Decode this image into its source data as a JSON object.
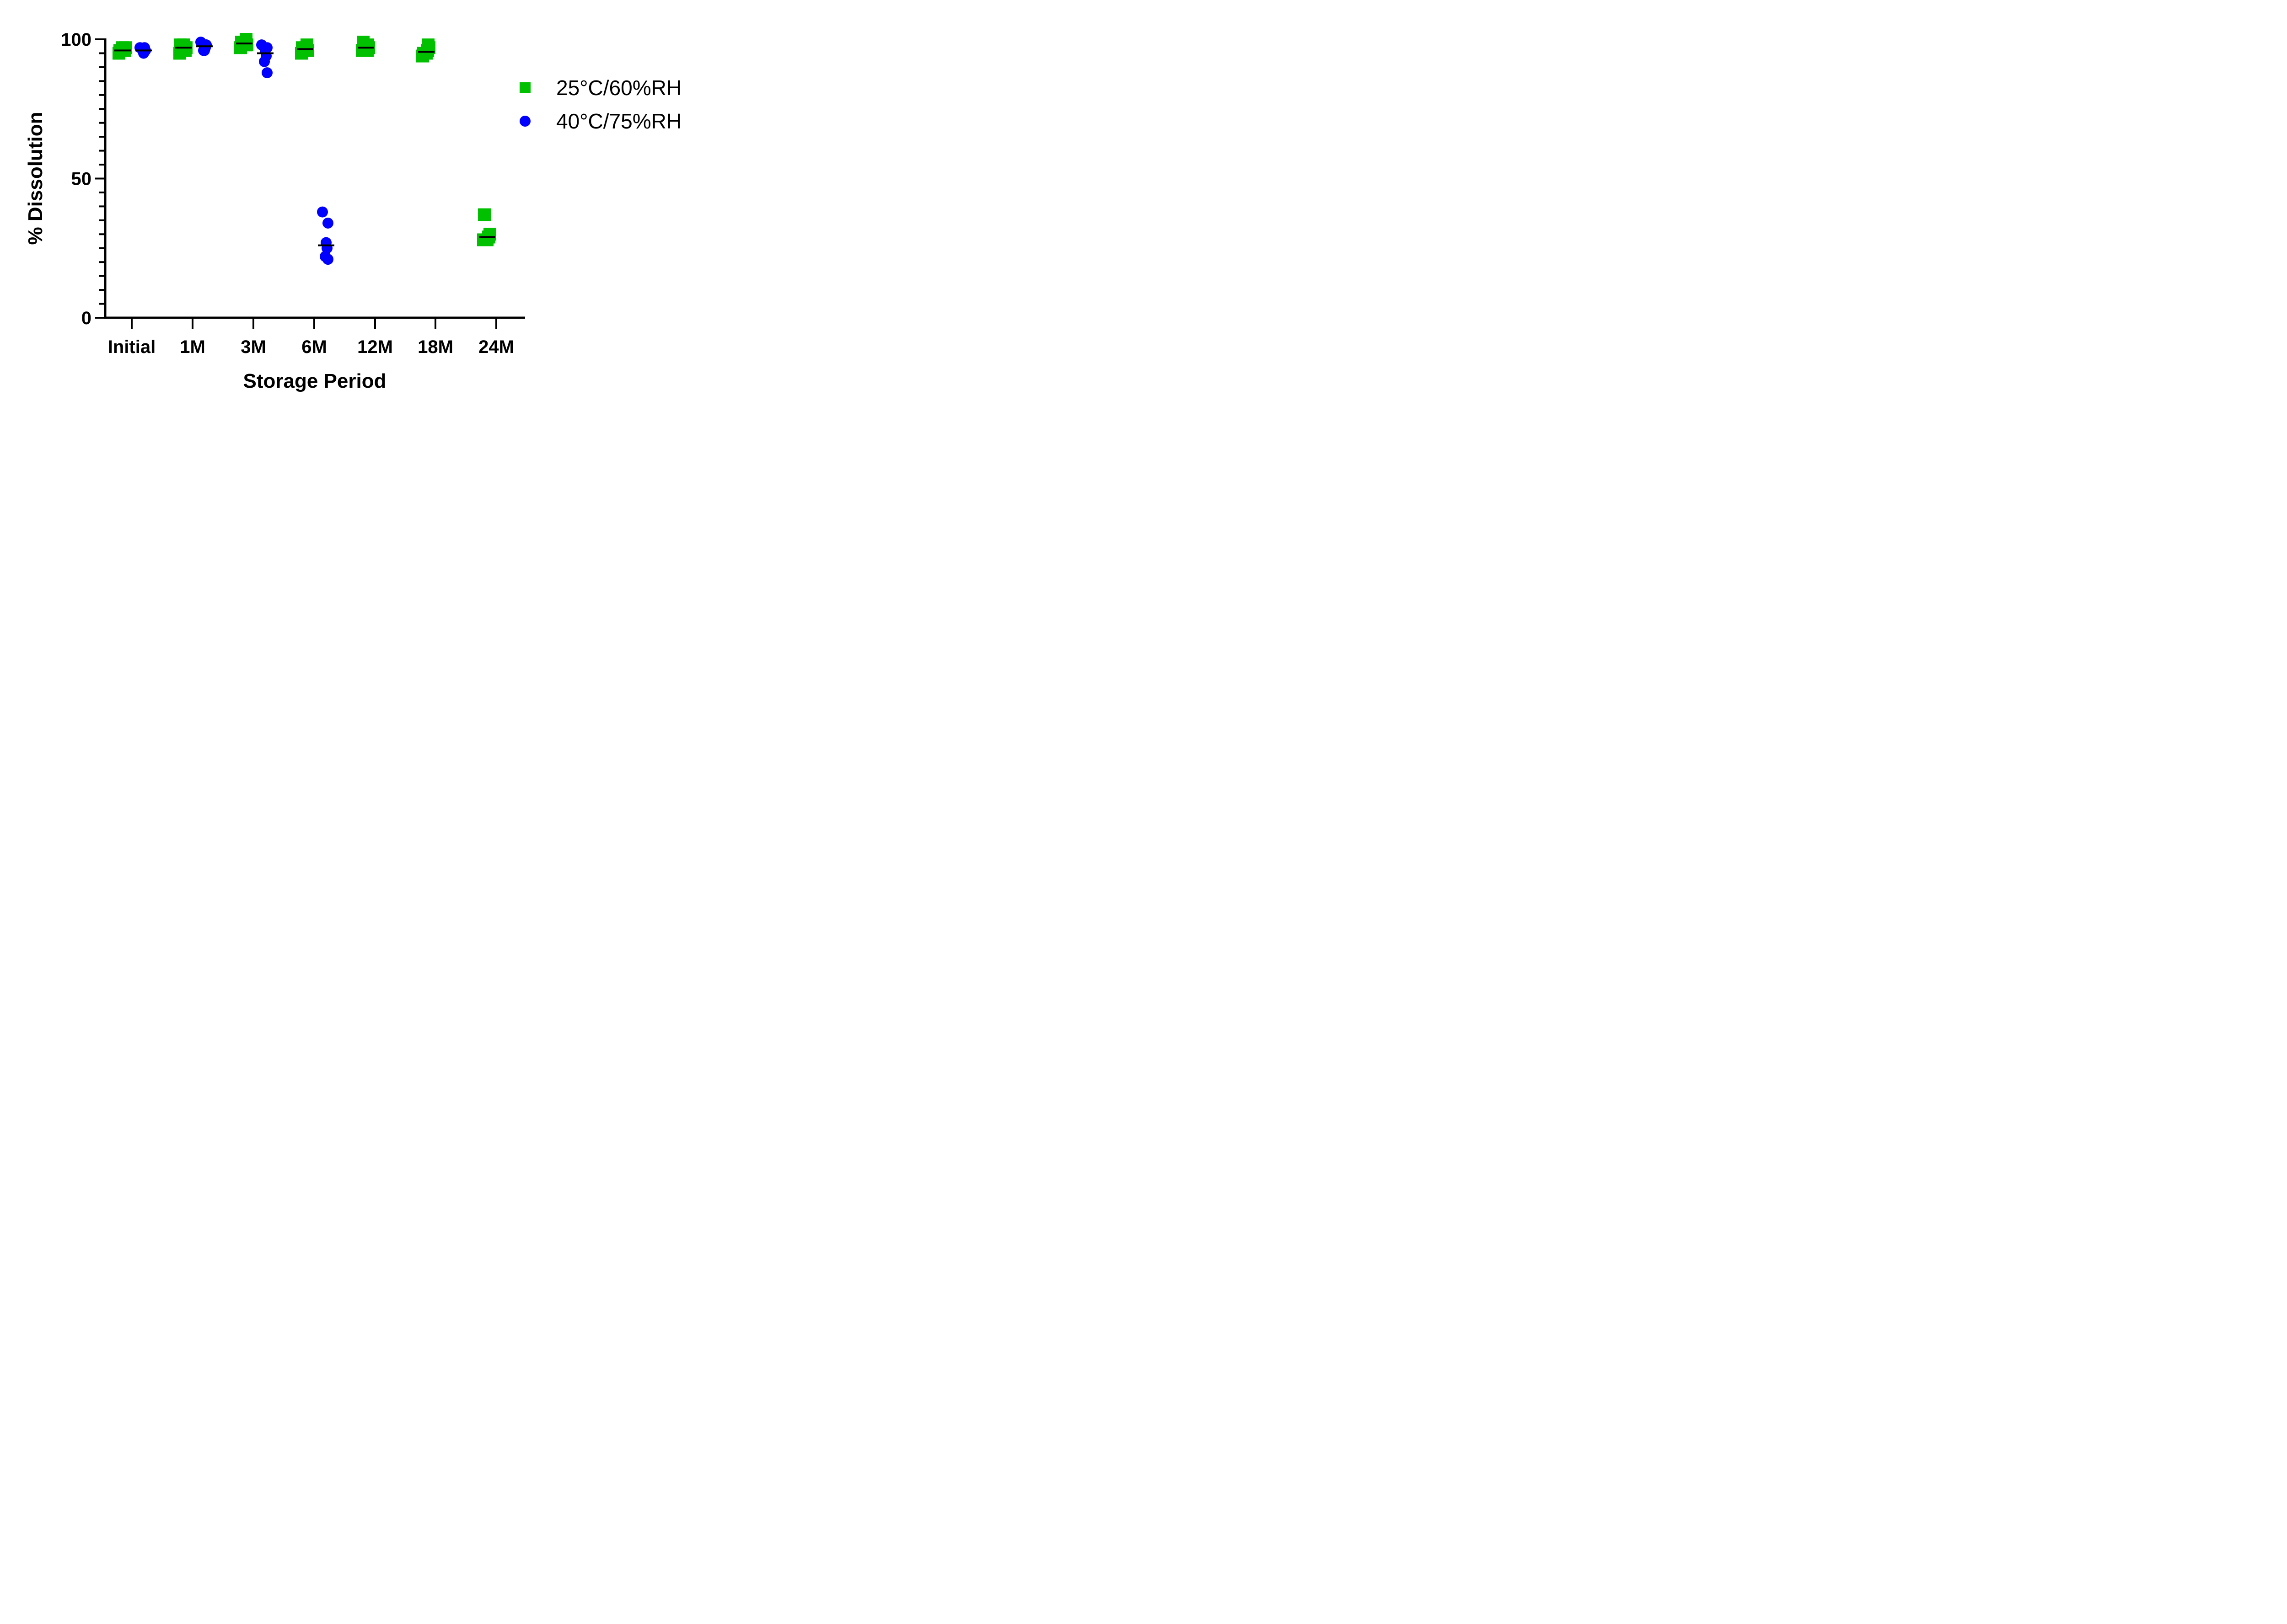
{
  "chart_data": {
    "type": "scatter",
    "xlabel": "Storage Period",
    "ylabel": "% Dissolution",
    "categories": [
      "Initial",
      "1M",
      "3M",
      "6M",
      "12M",
      "18M",
      "24M"
    ],
    "ylim": [
      0,
      100
    ],
    "yticks": [
      "0",
      "50",
      "100"
    ],
    "legend_position": "right",
    "grid": false,
    "series": [
      {
        "name": "25°C/60%RH",
        "marker": "square",
        "color": "#00c000",
        "points": [
          {
            "x": "Initial",
            "values": [
              96,
              97,
              95,
              96,
              97,
              96
            ]
          },
          {
            "x": "1M",
            "values": [
              98,
              97,
              95,
              96,
              98,
              97
            ]
          },
          {
            "x": "3M",
            "values": [
              99,
              98,
              97,
              100,
              99,
              98
            ]
          },
          {
            "x": "6M",
            "values": [
              97,
              96,
              95,
              98,
              96,
              97
            ]
          },
          {
            "x": "12M",
            "values": [
              99,
              97,
              96,
              98,
              97,
              96
            ]
          },
          {
            "x": "18M",
            "values": [
              95,
              97,
              94,
              98,
              95,
              96
            ]
          },
          {
            "x": "24M",
            "values": [
              37,
              30,
              28,
              29,
              28,
              29
            ]
          }
        ]
      },
      {
        "name": "40°C/75%RH",
        "marker": "circle",
        "color": "#0000ff",
        "points": [
          {
            "x": "Initial",
            "values": [
              97,
              96,
              95,
              97,
              96
            ]
          },
          {
            "x": "1M",
            "values": [
              99,
              98,
              96,
              97,
              96,
              98
            ]
          },
          {
            "x": "3M",
            "values": [
              98,
              97,
              96,
              94,
              92,
              88
            ]
          },
          {
            "x": "6M",
            "values": [
              38,
              34,
              27,
              25,
              22,
              21
            ]
          }
        ]
      }
    ]
  }
}
